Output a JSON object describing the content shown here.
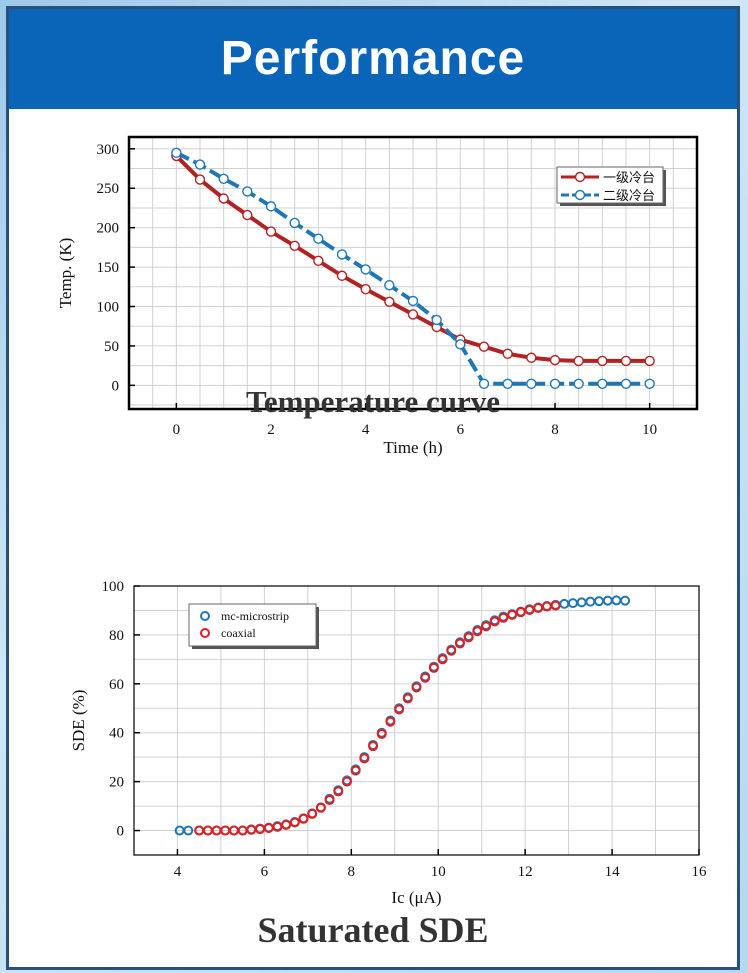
{
  "page": {
    "title": "Performance"
  },
  "chart_data": [
    {
      "type": "line",
      "title": "Temperature curve",
      "xlabel": "Time (h)",
      "ylabel": "Temp. (K)",
      "xlim": [
        -1,
        11
      ],
      "ylim": [
        -30,
        315
      ],
      "xticks": [
        0,
        2,
        4,
        6,
        8,
        10
      ],
      "yticks": [
        0,
        50,
        100,
        150,
        200,
        250,
        300
      ],
      "grid": true,
      "legend_position": "top-right",
      "series": [
        {
          "name": "一级冷台",
          "color": "#b22222",
          "marker": "circle",
          "x": [
            0,
            0.5,
            1,
            1.5,
            2,
            2.5,
            3,
            3.5,
            4,
            4.5,
            5,
            5.5,
            6,
            6.5,
            7,
            7.5,
            8,
            8.5,
            9,
            9.5,
            10
          ],
          "y": [
            291,
            261,
            237,
            216,
            195,
            177,
            158,
            139,
            122,
            106,
            90,
            74,
            58,
            49,
            40,
            35,
            32,
            31,
            31,
            31,
            31
          ]
        },
        {
          "name": "二级冷台",
          "color": "#1f77b4",
          "marker": "circle",
          "x": [
            0,
            0.5,
            1,
            1.5,
            2,
            2.5,
            3,
            3.5,
            4,
            4.5,
            5,
            5.5,
            6,
            6.5,
            7,
            7.5,
            8,
            8.5,
            9,
            9.5,
            10
          ],
          "y": [
            295,
            280,
            262,
            246,
            227,
            206,
            186,
            166,
            147,
            127,
            107,
            83,
            52,
            2,
            2,
            2,
            2,
            2,
            2,
            2,
            2
          ]
        }
      ]
    },
    {
      "type": "scatter",
      "title": "Saturated SDE",
      "xlabel": "Ic (μA)",
      "ylabel": "SDE (%)",
      "xlim": [
        3,
        16
      ],
      "ylim": [
        -10,
        100
      ],
      "xticks": [
        4,
        6,
        8,
        10,
        12,
        14,
        16
      ],
      "yticks": [
        0,
        20,
        40,
        60,
        80,
        100
      ],
      "grid": true,
      "legend_position": "top-left",
      "series": [
        {
          "name": "mc-microstrip",
          "color": "#1f77b4",
          "marker": "circle",
          "x": [
            4.05,
            4.25,
            4.5,
            4.7,
            4.9,
            5.1,
            5.3,
            5.5,
            5.7,
            5.9,
            6.1,
            6.3,
            6.5,
            6.7,
            6.9,
            7.1,
            7.3,
            7.5,
            7.7,
            7.9,
            8.1,
            8.3,
            8.5,
            8.7,
            8.9,
            9.1,
            9.3,
            9.5,
            9.7,
            9.9,
            10.1,
            10.3,
            10.5,
            10.7,
            10.9,
            11.1,
            11.3,
            11.5,
            11.7,
            11.9,
            12.1,
            12.3,
            12.5,
            12.7,
            12.9,
            13.1,
            13.3,
            13.5,
            13.7,
            13.9,
            14.1,
            14.3
          ],
          "y": [
            0,
            0,
            0,
            0,
            0,
            0,
            0,
            0,
            0.5,
            0.8,
            1.2,
            1.8,
            2.5,
            3.5,
            5,
            7,
            9.5,
            13,
            16.5,
            20.5,
            25,
            30,
            35,
            40,
            45,
            50,
            54.5,
            59,
            63,
            67,
            70.5,
            74,
            77,
            79.5,
            82,
            84,
            86,
            87.5,
            88.5,
            89.5,
            90.5,
            91.2,
            91.8,
            92.3,
            92.7,
            93,
            93.3,
            93.6,
            93.8,
            94,
            94.1,
            94
          ]
        },
        {
          "name": "coaxial",
          "color": "#e02020",
          "marker": "circle",
          "x": [
            4.5,
            4.7,
            4.9,
            5.1,
            5.3,
            5.5,
            5.7,
            5.9,
            6.1,
            6.3,
            6.5,
            6.7,
            6.9,
            7.1,
            7.3,
            7.5,
            7.7,
            7.9,
            8.1,
            8.3,
            8.5,
            8.7,
            8.9,
            9.1,
            9.3,
            9.5,
            9.7,
            9.9,
            10.1,
            10.3,
            10.5,
            10.7,
            10.9,
            11.1,
            11.3,
            11.5,
            11.7,
            11.9,
            12.1,
            12.3,
            12.5,
            12.7
          ],
          "y": [
            0,
            0,
            0,
            0,
            0,
            0,
            0.3,
            0.6,
            1,
            1.5,
            2.3,
            3.3,
            4.8,
            6.8,
            9.3,
            12.5,
            16,
            20,
            24.5,
            29.5,
            34.5,
            39.5,
            44.5,
            49.5,
            54,
            58.5,
            62.5,
            66.5,
            70,
            73.5,
            76.5,
            79,
            81.5,
            83.5,
            85.5,
            87,
            88.2,
            89.3,
            90.2,
            91,
            91.6,
            92
          ]
        }
      ]
    }
  ]
}
